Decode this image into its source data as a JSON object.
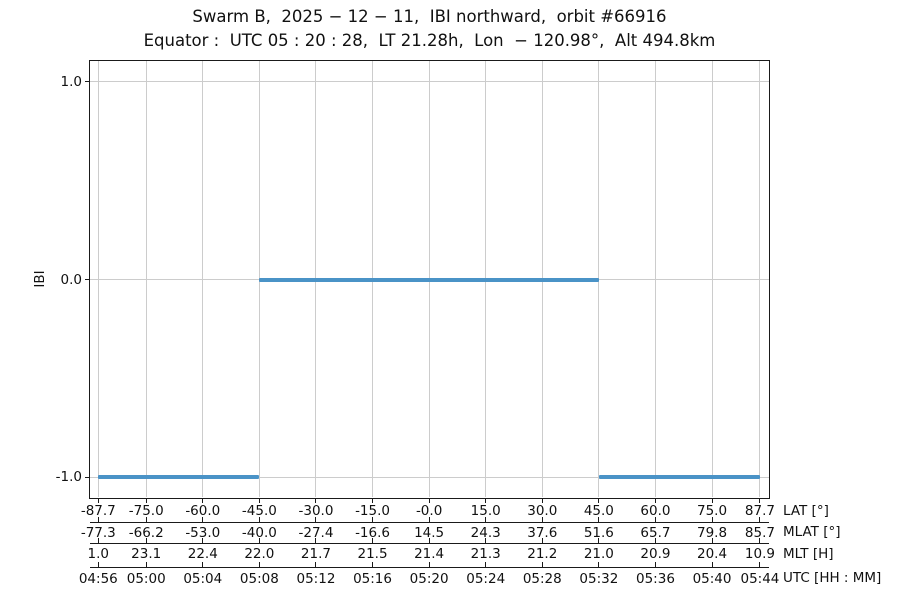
{
  "chart_data": {
    "type": "line",
    "title": "Swarm B,  2025 − 12 − 11,  IBI northward,  orbit #66916",
    "subtitle": "Equator :  UTC 05 : 20 : 28,  LT 21.28h,  Lon  − 120.98°,  Alt 494.8km",
    "ylabel": "IBI",
    "ylim": [
      -1.1,
      1.106
    ],
    "yticks": [
      1.0,
      0.0,
      -1.0
    ],
    "ytick_labels": [
      "1.0",
      "0.0",
      "-1.0"
    ],
    "xlim_lat": [
      -89.9,
      90.1
    ],
    "tick_lats": [
      -87.7,
      -75.0,
      -60.0,
      -45.0,
      -30.0,
      -15.0,
      0.0,
      15.0,
      30.0,
      45.0,
      60.0,
      75.0,
      87.7
    ],
    "grid": true,
    "legend": "none",
    "line_color": "#4a93c7",
    "grid_color": "#cccccc",
    "segments": [
      {
        "y": -1.0,
        "lat_start": -87.7,
        "lat_end": -45.0
      },
      {
        "y": 0.0,
        "lat_start": -45.0,
        "lat_end": 45.0
      },
      {
        "y": -1.0,
        "lat_start": 45.0,
        "lat_end": 87.7
      }
    ],
    "x_axis_rows": [
      {
        "label": "LAT [°]",
        "values": [
          "-87.7",
          "-75.0",
          "-60.0",
          "-45.0",
          "-30.0",
          "-15.0",
          "-0.0",
          "15.0",
          "30.0",
          "45.0",
          "60.0",
          "75.0",
          "87.7"
        ]
      },
      {
        "label": "MLAT [°]",
        "values": [
          "-77.3",
          "-66.2",
          "-53.0",
          "-40.0",
          "-27.4",
          "-16.6",
          "14.5",
          "24.3",
          "37.6",
          "51.6",
          "65.7",
          "79.8",
          "85.7"
        ]
      },
      {
        "label": "MLT [H]",
        "values": [
          "1.0",
          "23.1",
          "22.4",
          "22.0",
          "21.7",
          "21.5",
          "21.4",
          "21.3",
          "21.2",
          "21.0",
          "20.9",
          "20.4",
          "10.9"
        ]
      },
      {
        "label": "UTC [HH : MM]",
        "values": [
          "04:56",
          "05:00",
          "05:04",
          "05:08",
          "05:12",
          "05:16",
          "05:20",
          "05:24",
          "05:28",
          "05:32",
          "05:36",
          "05:40",
          "05:44"
        ]
      }
    ]
  }
}
